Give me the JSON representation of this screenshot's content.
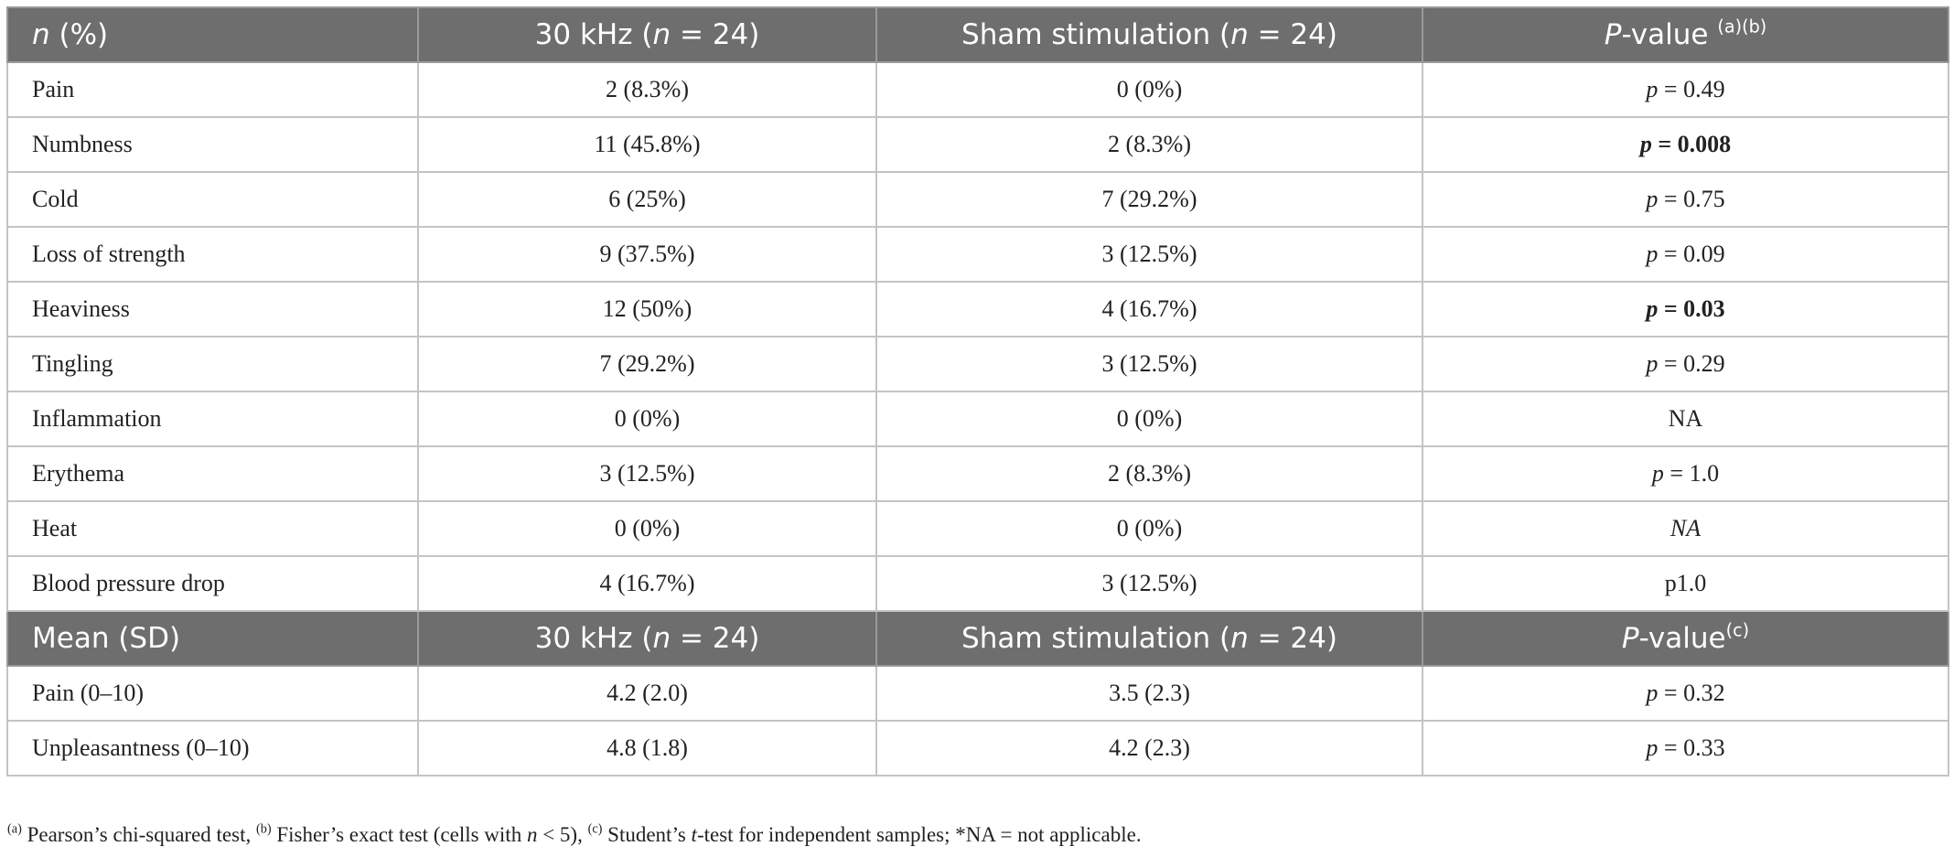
{
  "table": {
    "sections": [
      {
        "header": [
          [
            {
              "text": "n",
              "italic": true
            },
            {
              "text": " (%)"
            }
          ],
          [
            {
              "text": "30 kHz ("
            },
            {
              "text": "n",
              "italic": true
            },
            {
              "text": " = 24)"
            }
          ],
          [
            {
              "text": "Sham stimulation ("
            },
            {
              "text": "n",
              "italic": true
            },
            {
              "text": " = 24)"
            }
          ],
          [
            {
              "text": "P",
              "italic": true
            },
            {
              "text": "-value "
            },
            {
              "text": "(a)(b)",
              "sup": true
            }
          ]
        ],
        "rows": [
          [
            "Pain",
            "2 (8.3%)",
            "0 (0%)",
            [
              {
                "text": "p",
                "italic": true
              },
              {
                "text": " = 0.49"
              }
            ]
          ],
          [
            "Numbness",
            "11 (45.8%)",
            "2 (8.3%)",
            [
              {
                "text": "p",
                "italic": true,
                "bold": true
              },
              {
                "text": " = 0.008",
                "bold": true
              }
            ]
          ],
          [
            "Cold",
            "6 (25%)",
            "7 (29.2%)",
            [
              {
                "text": "p",
                "italic": true
              },
              {
                "text": " = 0.75"
              }
            ]
          ],
          [
            "Loss of strength",
            "9 (37.5%)",
            "3 (12.5%)",
            [
              {
                "text": "p",
                "italic": true
              },
              {
                "text": " = 0.09"
              }
            ]
          ],
          [
            "Heaviness",
            "12 (50%)",
            "4 (16.7%)",
            [
              {
                "text": "p",
                "italic": true,
                "bold": true
              },
              {
                "text": " = 0.03",
                "bold": true
              }
            ]
          ],
          [
            "Tingling",
            "7 (29.2%)",
            "3 (12.5%)",
            [
              {
                "text": "p",
                "italic": true
              },
              {
                "text": " = 0.29"
              }
            ]
          ],
          [
            "Inflammation",
            "0 (0%)",
            "0 (0%)",
            "NA"
          ],
          [
            "Erythema",
            "3 (12.5%)",
            "2 (8.3%)",
            [
              {
                "text": "p",
                "italic": true
              },
              {
                "text": " = 1.0"
              }
            ]
          ],
          [
            "Heat",
            "0 (0%)",
            "0 (0%)",
            [
              {
                "text": "NA",
                "italic": true
              }
            ]
          ],
          [
            "Blood pressure drop",
            "4 (16.7%)",
            "3 (12.5%)",
            "p1.0"
          ]
        ]
      },
      {
        "header": [
          "Mean (SD)",
          [
            {
              "text": "30 kHz ("
            },
            {
              "text": "n",
              "italic": true
            },
            {
              "text": " = 24)"
            }
          ],
          [
            {
              "text": "Sham stimulation ("
            },
            {
              "text": "n",
              "italic": true
            },
            {
              "text": " = 24)"
            }
          ],
          [
            {
              "text": "P",
              "italic": true
            },
            {
              "text": "-value"
            },
            {
              "text": "(c)",
              "sup": true
            }
          ]
        ],
        "rows": [
          [
            "Pain (0–10)",
            "4.2 (2.0)",
            "3.5 (2.3)",
            [
              {
                "text": "p",
                "italic": true
              },
              {
                "text": " = 0.32"
              }
            ]
          ],
          [
            "Unpleasantness (0–10)",
            "4.8 (1.8)",
            "4.2 (2.3)",
            [
              {
                "text": "p",
                "italic": true
              },
              {
                "text": " = 0.33"
              }
            ]
          ]
        ]
      }
    ],
    "footnote": [
      {
        "text": "(a)",
        "sup": true
      },
      {
        "text": " Pearson’s chi-squared test, "
      },
      {
        "text": "(b)",
        "sup": true
      },
      {
        "text": " Fisher’s exact test (cells with "
      },
      {
        "text": "n",
        "italic": true
      },
      {
        "text": " < 5), "
      },
      {
        "text": "(c)",
        "sup": true
      },
      {
        "text": " Student’s "
      },
      {
        "text": "t",
        "italic": true
      },
      {
        "text": "-test for independent samples; *NA = not applicable."
      }
    ]
  }
}
